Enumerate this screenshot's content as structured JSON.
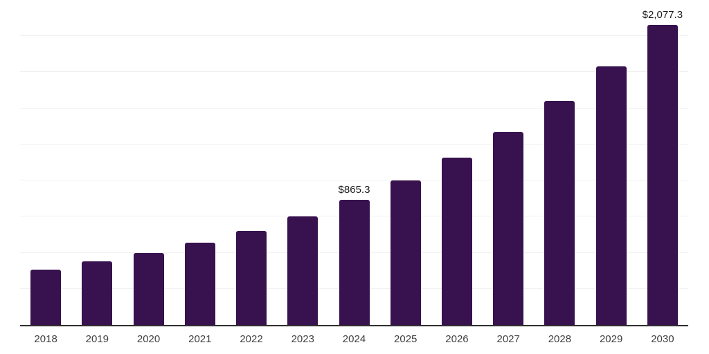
{
  "chart_data": {
    "type": "bar",
    "categories": [
      "2018",
      "2019",
      "2020",
      "2021",
      "2022",
      "2023",
      "2024",
      "2025",
      "2026",
      "2027",
      "2028",
      "2029",
      "2030"
    ],
    "values": [
      385,
      440,
      497.5,
      570,
      651,
      749.5,
      865.3,
      1000.5,
      1157,
      1336,
      1550,
      1791,
      2077.3
    ],
    "data_labels": [
      {
        "index": 6,
        "text": "$865.3"
      },
      {
        "index": 12,
        "text": "$2,077.3"
      }
    ],
    "title": "",
    "xlabel": "",
    "ylabel": "",
    "ylim": [
      0,
      2250
    ],
    "grid_step": 250,
    "grid": "horizontal-only",
    "y_tick_labels": "none",
    "legend_position": "none",
    "colors": {
      "bar": "#38114F",
      "gridline": "#f0f0f0",
      "axis_line": "#2e2e2e",
      "tick_label": "#3f3f3f",
      "data_label": "#1a1a1a",
      "background": "#ffffff"
    }
  }
}
